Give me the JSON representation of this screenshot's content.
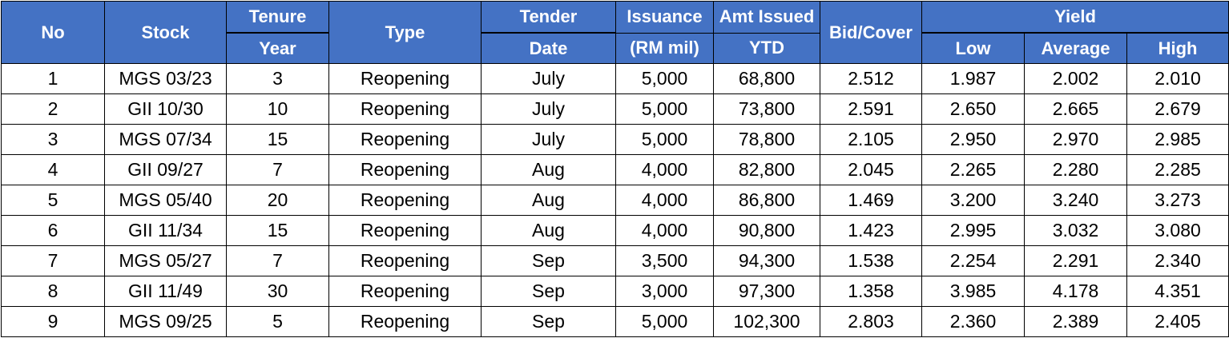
{
  "table": {
    "headers": {
      "no": "No",
      "stock": "Stock",
      "tenure_top": "Tenure",
      "tenure_bottom": "Year",
      "type": "Type",
      "tender_top": "Tender",
      "tender_bottom": "Date",
      "issuance_top": "Issuance",
      "issuance_bottom": "(RM mil)",
      "amt_top": "Amt Issued",
      "amt_bottom": "YTD",
      "bid_cover": "Bid/Cover",
      "yield": "Yield",
      "low": "Low",
      "average": "Average",
      "high": "High"
    },
    "rows": [
      {
        "no": "1",
        "stock": "MGS 03/23",
        "tenure": "3",
        "type": "Reopening",
        "date": "July",
        "issuance": "5,000",
        "ytd": "68,800",
        "bid_cover": "2.512",
        "low": "1.987",
        "average": "2.002",
        "high": "2.010"
      },
      {
        "no": "2",
        "stock": "GII 10/30",
        "tenure": "10",
        "type": "Reopening",
        "date": "July",
        "issuance": "5,000",
        "ytd": "73,800",
        "bid_cover": "2.591",
        "low": "2.650",
        "average": "2.665",
        "high": "2.679"
      },
      {
        "no": "3",
        "stock": "MGS 07/34",
        "tenure": "15",
        "type": "Reopening",
        "date": "July",
        "issuance": "5,000",
        "ytd": "78,800",
        "bid_cover": "2.105",
        "low": "2.950",
        "average": "2.970",
        "high": "2.985"
      },
      {
        "no": "4",
        "stock": "GII 09/27",
        "tenure": "7",
        "type": "Reopening",
        "date": "Aug",
        "issuance": "4,000",
        "ytd": "82,800",
        "bid_cover": "2.045",
        "low": "2.265",
        "average": "2.280",
        "high": "2.285"
      },
      {
        "no": "5",
        "stock": "MGS 05/40",
        "tenure": "20",
        "type": "Reopening",
        "date": "Aug",
        "issuance": "4,000",
        "ytd": "86,800",
        "bid_cover": "1.469",
        "low": "3.200",
        "average": "3.240",
        "high": "3.273"
      },
      {
        "no": "6",
        "stock": "GII 11/34",
        "tenure": "15",
        "type": "Reopening",
        "date": "Aug",
        "issuance": "4,000",
        "ytd": "90,800",
        "bid_cover": "1.423",
        "low": "2.995",
        "average": "3.032",
        "high": "3.080"
      },
      {
        "no": "7",
        "stock": "MGS 05/27",
        "tenure": "7",
        "type": "Reopening",
        "date": "Sep",
        "issuance": "3,500",
        "ytd": "94,300",
        "bid_cover": "1.538",
        "low": "2.254",
        "average": "2.291",
        "high": "2.340"
      },
      {
        "no": "8",
        "stock": "GII 11/49",
        "tenure": "30",
        "type": "Reopening",
        "date": "Sep",
        "issuance": "3,000",
        "ytd": "97,300",
        "bid_cover": "1.358",
        "low": "3.985",
        "average": "4.178",
        "high": "4.351"
      },
      {
        "no": "9",
        "stock": "MGS 09/25",
        "tenure": "5",
        "type": "Reopening",
        "date": "Sep",
        "issuance": "5,000",
        "ytd": "102,300",
        "bid_cover": "2.803",
        "low": "2.360",
        "average": "2.389",
        "high": "2.405"
      }
    ]
  },
  "colors": {
    "header_background": "#4472c4",
    "header_text": "#ffffff",
    "border": "#000000"
  }
}
